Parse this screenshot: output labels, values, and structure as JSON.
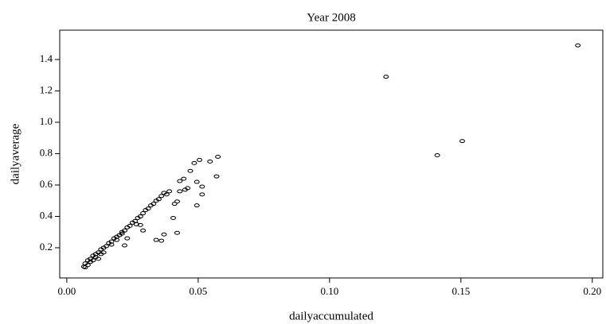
{
  "chart_data": {
    "type": "scatter",
    "title": "Year 2008",
    "x_label": "dailyaccumulated",
    "y_label": "dailyaverage",
    "color": "#000000",
    "x": [
      0.1945,
      0.1215,
      0.1505,
      0.141,
      0.057,
      0.0515,
      0.0515,
      0.0495,
      0.0495,
      0.042,
      0.0405,
      0.037,
      0.034,
      0.036,
      0.042,
      0.041,
      0.043,
      0.045,
      0.046,
      0.047,
      0.0445,
      0.043,
      0.0485,
      0.0505,
      0.0545,
      0.0575,
      0.039,
      0.038,
      0.037,
      0.036,
      0.035,
      0.034,
      0.033,
      0.032,
      0.031,
      0.03,
      0.029,
      0.028,
      0.027,
      0.026,
      0.025,
      0.024,
      0.023,
      0.022,
      0.021,
      0.02,
      0.019,
      0.018,
      0.017,
      0.016,
      0.015,
      0.014,
      0.013,
      0.012,
      0.011,
      0.01,
      0.009,
      0.008,
      0.007,
      0.0065,
      0.007,
      0.029,
      0.028,
      0.022,
      0.023,
      0.0265,
      0.012,
      0.011,
      0.014,
      0.017,
      0.019,
      0.021,
      0.009,
      0.008,
      0.01,
      0.013
    ],
    "y": [
      1.49,
      1.29,
      0.88,
      0.79,
      0.655,
      0.54,
      0.59,
      0.62,
      0.47,
      0.295,
      0.39,
      0.285,
      0.25,
      0.245,
      0.495,
      0.48,
      0.56,
      0.57,
      0.58,
      0.69,
      0.64,
      0.625,
      0.74,
      0.76,
      0.75,
      0.78,
      0.56,
      0.54,
      0.55,
      0.53,
      0.51,
      0.5,
      0.48,
      0.47,
      0.45,
      0.44,
      0.42,
      0.4,
      0.39,
      0.37,
      0.36,
      0.34,
      0.33,
      0.31,
      0.3,
      0.28,
      0.27,
      0.26,
      0.24,
      0.23,
      0.21,
      0.2,
      0.19,
      0.17,
      0.16,
      0.15,
      0.13,
      0.12,
      0.1,
      0.08,
      0.075,
      0.31,
      0.345,
      0.215,
      0.26,
      0.35,
      0.13,
      0.14,
      0.17,
      0.22,
      0.25,
      0.29,
      0.11,
      0.09,
      0.12,
      0.16
    ],
    "xlim": [
      -0.0027,
      0.204
    ],
    "ylim": [
      0.0076,
      1.587
    ],
    "xticks": [
      {
        "value": 0,
        "label": "0.00"
      },
      {
        "value": 0.05,
        "label": "0.05"
      },
      {
        "value": 0.1,
        "label": "0.10"
      },
      {
        "value": 0.15,
        "label": "0.15"
      },
      {
        "value": 0.2,
        "label": "0.20"
      }
    ],
    "yticks": [
      0.2,
      0.4,
      0.6,
      0.8,
      {
        "value": 1,
        "label": "1.0"
      },
      1.2,
      1.4
    ]
  }
}
